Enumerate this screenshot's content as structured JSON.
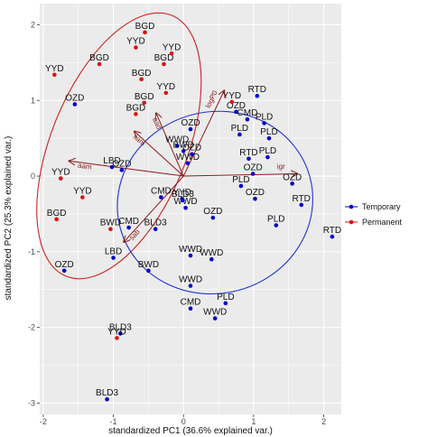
{
  "chart_data": {
    "type": "scatter",
    "title": "",
    "xlabel": "standardized PC1 (36.6% explained var.)",
    "ylabel": "standardized PC2 (25.3% explained var.)",
    "xlim": [
      -2.05,
      2.25
    ],
    "ylim": [
      -3.15,
      2.28
    ],
    "x_ticks": [
      -2,
      -1,
      0,
      1,
      2
    ],
    "y_ticks": [
      -3,
      -2,
      -1,
      0,
      1,
      2
    ],
    "grid": true,
    "legend_position": "right",
    "series": [
      {
        "name": "Temporary",
        "color": "#0000cc",
        "points": [
          {
            "x": -1.55,
            "y": 0.95,
            "label": "OZD"
          },
          {
            "x": 1.05,
            "y": 1.06,
            "label": "RTD"
          },
          {
            "x": 0.75,
            "y": 0.85,
            "label": "OZD"
          },
          {
            "x": 0.91,
            "y": 0.75,
            "label": "CMD"
          },
          {
            "x": 0.1,
            "y": 0.62,
            "label": "OZD"
          },
          {
            "x": 0.8,
            "y": 0.55,
            "label": "PLD"
          },
          {
            "x": 1.15,
            "y": 0.7,
            "label": "PLD"
          },
          {
            "x": 1.22,
            "y": 0.5,
            "label": "PLD"
          },
          {
            "x": -0.09,
            "y": 0.4,
            "label": "WWD"
          },
          {
            "x": 0.0,
            "y": 0.33,
            "label": "BWD"
          },
          {
            "x": 0.06,
            "y": 0.17,
            "label": "WWD"
          },
          {
            "x": 0.12,
            "y": 0.29,
            "label": "OZD"
          },
          {
            "x": 1.2,
            "y": 0.25,
            "label": "PLD"
          },
          {
            "x": 0.93,
            "y": 0.23,
            "label": "RTD"
          },
          {
            "x": -1.02,
            "y": 0.12,
            "label": "LBD"
          },
          {
            "x": -0.88,
            "y": 0.08,
            "label": "OZD"
          },
          {
            "x": 0.99,
            "y": 0.03,
            "label": "OZD"
          },
          {
            "x": 1.55,
            "y": -0.1,
            "label": "OZD"
          },
          {
            "x": 0.82,
            "y": -0.13,
            "label": "PLD"
          },
          {
            "x": 1.02,
            "y": -0.3,
            "label": "OZD"
          },
          {
            "x": -0.02,
            "y": -0.3,
            "label": "YYD"
          },
          {
            "x": 0.03,
            "y": -0.42,
            "label": "WWD"
          },
          {
            "x": -0.32,
            "y": -0.28,
            "label": "CMD"
          },
          {
            "x": -0.01,
            "y": -0.32,
            "label": "BLD3"
          },
          {
            "x": 0.42,
            "y": -0.55,
            "label": "OZD"
          },
          {
            "x": 1.68,
            "y": -0.38,
            "label": "RTD"
          },
          {
            "x": 1.32,
            "y": -0.65,
            "label": "PLD"
          },
          {
            "x": 2.12,
            "y": -0.8,
            "label": "RTD"
          },
          {
            "x": -0.78,
            "y": -0.68,
            "label": "CMD"
          },
          {
            "x": -0.4,
            "y": -0.7,
            "label": "BLD3"
          },
          {
            "x": -1.0,
            "y": -1.08,
            "label": "LBD"
          },
          {
            "x": 0.1,
            "y": -1.05,
            "label": "WWD"
          },
          {
            "x": 0.4,
            "y": -1.1,
            "label": "WWD"
          },
          {
            "x": -0.5,
            "y": -1.25,
            "label": "BWD"
          },
          {
            "x": 0.1,
            "y": -1.45,
            "label": "WWD"
          },
          {
            "x": -1.7,
            "y": -1.25,
            "label": "OZD"
          },
          {
            "x": 0.1,
            "y": -1.75,
            "label": "CMD"
          },
          {
            "x": 0.6,
            "y": -1.68,
            "label": "PLD"
          },
          {
            "x": 0.45,
            "y": -1.88,
            "label": "WWD"
          },
          {
            "x": -0.9,
            "y": -2.08,
            "label": "BLD3"
          },
          {
            "x": -1.09,
            "y": -2.95,
            "label": "BLD3"
          }
        ]
      },
      {
        "name": "Permanent",
        "color": "#dd1111",
        "points": [
          {
            "x": -1.84,
            "y": 1.34,
            "label": "YYD"
          },
          {
            "x": -0.55,
            "y": 1.9,
            "label": "BGD"
          },
          {
            "x": -0.68,
            "y": 1.7,
            "label": "YYD"
          },
          {
            "x": -1.2,
            "y": 1.48,
            "label": "BGD"
          },
          {
            "x": -0.28,
            "y": 1.48,
            "label": "BGD"
          },
          {
            "x": -0.6,
            "y": 1.28,
            "label": "BGD"
          },
          {
            "x": -0.17,
            "y": 1.62,
            "label": "YYD"
          },
          {
            "x": -0.25,
            "y": 1.1,
            "label": "YYD"
          },
          {
            "x": -0.56,
            "y": 0.97,
            "label": "BGD"
          },
          {
            "x": -0.68,
            "y": 0.82,
            "label": "BGD"
          },
          {
            "x": 0.69,
            "y": 0.98,
            "label": "YYD"
          },
          {
            "x": -1.75,
            "y": -0.03,
            "label": "YYD"
          },
          {
            "x": -1.81,
            "y": -0.57,
            "label": "BGD"
          },
          {
            "x": -1.44,
            "y": -0.28,
            "label": "YYD"
          },
          {
            "x": -1.04,
            "y": -0.7,
            "label": "BWD"
          },
          {
            "x": -0.95,
            "y": -2.14,
            "label": "YYD"
          }
        ]
      }
    ],
    "loadings": [
      {
        "label": "aad",
        "x": -0.39,
        "y": 0.83
      },
      {
        "label": "logP0",
        "x": 0.58,
        "y": 1.13
      },
      {
        "label": "sam",
        "x": -0.7,
        "y": 0.59
      },
      {
        "label": "aam",
        "x": -1.63,
        "y": 0.2
      },
      {
        "label": "igr",
        "x": 1.62,
        "y": 0.03
      },
      {
        "label": "sab",
        "x": -0.85,
        "y": -0.87
      }
    ],
    "ellipses": [
      {
        "group": "Permanent",
        "cx": -0.92,
        "cy": 0.4,
        "rx": 0.97,
        "ry": 1.86,
        "angle": 22,
        "color": "#cc2222"
      },
      {
        "group": "Temporary",
        "cx": 0.45,
        "cy": -0.35,
        "rx": 1.4,
        "ry": 1.2,
        "angle": -15,
        "color": "#2233cc"
      }
    ]
  }
}
